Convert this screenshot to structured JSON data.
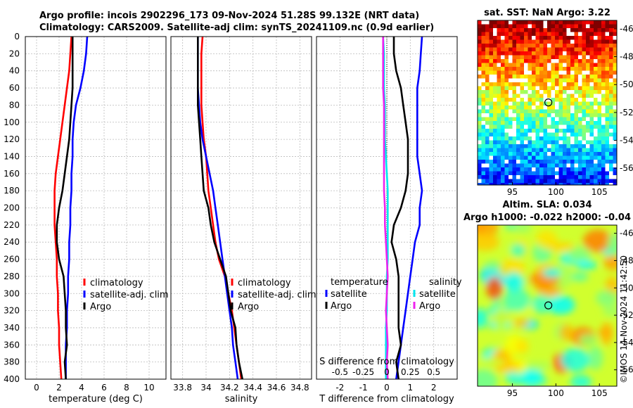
{
  "header": {
    "line1": "Argo profile: incois 2902296_173 09-Nov-2024 51.28S 99.132E (NRT data)",
    "line2": "Climatology: CARS2009. Satellite-adj clim: synTS_20241109.nc (0.9d earlier)"
  },
  "stamp": "©IMOS 14-Nov-2024 11:42:50",
  "colors": {
    "climatology": "#ff0000",
    "satellite": "#0000ff",
    "argo": "#000000",
    "salinity_satellite": "#00e5ee",
    "salinity_argo": "#ee22ee"
  },
  "chart_data": [
    {
      "type": "line",
      "xlabel": "temperature (deg C)",
      "ylabel": "",
      "xlim": [
        -1,
        11.5
      ],
      "ylim": [
        0,
        400
      ],
      "xticks": [
        0,
        2,
        4,
        6,
        8,
        10
      ],
      "yticks": [
        0,
        20,
        40,
        60,
        80,
        100,
        120,
        140,
        160,
        180,
        200,
        220,
        240,
        260,
        280,
        300,
        320,
        340,
        360,
        380,
        400
      ],
      "legend": [
        "climatology",
        "satellite-adj. clim",
        "Argo"
      ],
      "series": [
        {
          "name": "climatology",
          "depth": [
            0,
            20,
            40,
            60,
            80,
            100,
            120,
            140,
            160,
            180,
            200,
            220,
            240,
            260,
            280,
            300,
            320,
            340,
            360,
            380,
            400
          ],
          "values": [
            3.1,
            3.0,
            2.9,
            2.7,
            2.5,
            2.3,
            2.1,
            1.9,
            1.7,
            1.6,
            1.6,
            1.6,
            1.7,
            1.8,
            1.8,
            1.9,
            1.9,
            2.0,
            2.0,
            2.1,
            2.2
          ]
        },
        {
          "name": "satellite-adj. clim",
          "depth": [
            0,
            20,
            40,
            60,
            80,
            100,
            120,
            140,
            160,
            180,
            200,
            220,
            240,
            260,
            280,
            300,
            320,
            340,
            360,
            380,
            400
          ],
          "values": [
            4.5,
            4.4,
            4.2,
            3.9,
            3.5,
            3.3,
            3.2,
            3.2,
            3.1,
            3.1,
            3.0,
            3.0,
            2.9,
            2.9,
            2.8,
            2.8,
            2.7,
            2.7,
            2.6,
            2.6,
            2.6
          ]
        },
        {
          "name": "Argo",
          "depth": [
            0,
            20,
            40,
            60,
            80,
            100,
            120,
            140,
            160,
            180,
            200,
            220,
            240,
            260,
            280,
            300,
            320,
            340,
            360,
            380,
            400
          ],
          "values": [
            3.2,
            3.2,
            3.2,
            3.2,
            3.1,
            3.0,
            2.9,
            2.7,
            2.5,
            2.3,
            2.0,
            1.8,
            1.8,
            2.0,
            2.4,
            2.5,
            2.6,
            2.6,
            2.7,
            2.5,
            2.6
          ]
        }
      ]
    },
    {
      "type": "line",
      "xlabel": "salinity",
      "xlim": [
        33.7,
        34.9
      ],
      "ylim": [
        0,
        400
      ],
      "xticks": [
        33.8,
        34,
        34.2,
        34.4,
        34.6,
        34.8
      ],
      "legend": [
        "climatology",
        "satellite-adj. clim",
        "Argo"
      ],
      "series": [
        {
          "name": "climatology",
          "depth": [
            0,
            20,
            40,
            60,
            80,
            100,
            120,
            140,
            160,
            180,
            200,
            220,
            240,
            260,
            280,
            300,
            320,
            340,
            360,
            380,
            400
          ],
          "values": [
            33.97,
            33.96,
            33.96,
            33.96,
            33.96,
            33.97,
            33.98,
            34.0,
            34.01,
            34.02,
            34.04,
            34.06,
            34.08,
            34.11,
            34.16,
            34.19,
            34.22,
            34.24,
            34.26,
            34.28,
            34.3
          ]
        },
        {
          "name": "satellite-adj. clim",
          "depth": [
            0,
            20,
            40,
            60,
            80,
            100,
            120,
            140,
            160,
            180,
            200,
            220,
            240,
            260,
            280,
            300,
            320,
            340,
            360,
            380,
            400
          ],
          "values": [
            33.93,
            33.93,
            33.93,
            33.93,
            33.94,
            33.95,
            33.97,
            34.0,
            34.03,
            34.06,
            34.08,
            34.1,
            34.12,
            34.14,
            34.16,
            34.18,
            34.2,
            34.22,
            34.23,
            34.25,
            34.27
          ]
        },
        {
          "name": "Argo",
          "depth": [
            0,
            20,
            40,
            60,
            80,
            100,
            120,
            140,
            160,
            180,
            200,
            220,
            240,
            260,
            280,
            300,
            320,
            340,
            360,
            380,
            400
          ],
          "values": [
            33.93,
            33.93,
            33.93,
            33.93,
            33.93,
            33.94,
            33.95,
            33.96,
            33.97,
            33.98,
            34.02,
            34.04,
            34.07,
            34.12,
            34.17,
            34.19,
            34.21,
            34.25,
            34.26,
            34.28,
            34.31
          ]
        }
      ]
    },
    {
      "type": "line",
      "xlabel": "T difference from climatology",
      "top_label": "S difference from climatology",
      "xlim": [
        -3,
        3
      ],
      "ylim": [
        0,
        400
      ],
      "xticks": [
        -2,
        -1,
        0,
        1,
        2
      ],
      "top_ticks": [
        "-0.5",
        "-0.25",
        "0",
        "0.25",
        "0.5"
      ],
      "legend_t_title": "temperature",
      "legend_s_title": "salinity",
      "legend_t": [
        "satellite",
        "Argo"
      ],
      "legend_s": [
        "satellite",
        "Argo"
      ],
      "series": [
        {
          "name": "T satellite",
          "depth": [
            0,
            20,
            40,
            60,
            80,
            100,
            120,
            140,
            160,
            180,
            200,
            220,
            240,
            260,
            280,
            300,
            320,
            340,
            360,
            380,
            400
          ],
          "values": [
            1.5,
            1.45,
            1.4,
            1.3,
            1.3,
            1.3,
            1.3,
            1.3,
            1.4,
            1.5,
            1.4,
            1.4,
            1.2,
            1.1,
            1.0,
            0.9,
            0.8,
            0.7,
            0.6,
            0.5,
            0.4
          ]
        },
        {
          "name": "T Argo",
          "depth": [
            0,
            20,
            40,
            60,
            80,
            100,
            120,
            140,
            160,
            180,
            200,
            220,
            240,
            260,
            280,
            300,
            320,
            340,
            360,
            380,
            400
          ],
          "values": [
            0.3,
            0.3,
            0.4,
            0.6,
            0.7,
            0.8,
            0.9,
            0.9,
            0.9,
            0.8,
            0.6,
            0.3,
            0.2,
            0.4,
            0.5,
            0.5,
            0.5,
            0.5,
            0.6,
            0.4,
            0.5
          ]
        },
        {
          "name": "S satellite",
          "depth": [
            0,
            20,
            40,
            60,
            80,
            100,
            120,
            140,
            160,
            180,
            200,
            220,
            240,
            260,
            280,
            300,
            320,
            340,
            360,
            380,
            400
          ],
          "values": [
            -0.04,
            -0.03,
            -0.03,
            -0.03,
            -0.02,
            -0.02,
            -0.02,
            -0.01,
            0.0,
            0.01,
            0.01,
            0.01,
            0.01,
            0.01,
            0.0,
            0.0,
            0.0,
            -0.01,
            -0.01,
            -0.01,
            -0.01
          ]
        },
        {
          "name": "S Argo",
          "depth": [
            0,
            20,
            40,
            60,
            80,
            100,
            120,
            140,
            160,
            180,
            200,
            220,
            240,
            260,
            280,
            300,
            320,
            340,
            360,
            380,
            400
          ],
          "values": [
            -0.04,
            -0.04,
            -0.04,
            -0.04,
            -0.03,
            -0.03,
            -0.03,
            -0.03,
            -0.03,
            -0.03,
            -0.02,
            -0.02,
            -0.01,
            0.0,
            0.01,
            0.0,
            -0.01,
            0.0,
            0.01,
            0.0,
            0.01
          ]
        }
      ]
    },
    {
      "type": "heatmap",
      "title": "sat. SST: NaN Argo: 3.22",
      "xlim": [
        91,
        107
      ],
      "ylim": [
        -57.2,
        -45.4
      ],
      "xticks": [
        95,
        100,
        105
      ],
      "yticks": [
        -46,
        -48,
        -50,
        -52,
        -54,
        -56
      ],
      "argo_position": {
        "lon": 99.132,
        "lat": -51.28
      }
    },
    {
      "type": "heatmap",
      "title": "Altim. SLA: 0.034",
      "subtitle": "Argo h1000: -0.022 h2000: -0.04",
      "xlim": [
        91,
        107
      ],
      "ylim": [
        -57.2,
        -45.4
      ],
      "xticks": [
        95,
        100,
        105
      ],
      "yticks": [
        -46,
        -48,
        -50,
        -52,
        -54,
        -56
      ],
      "argo_position": {
        "lon": 99.132,
        "lat": -51.28
      }
    }
  ]
}
